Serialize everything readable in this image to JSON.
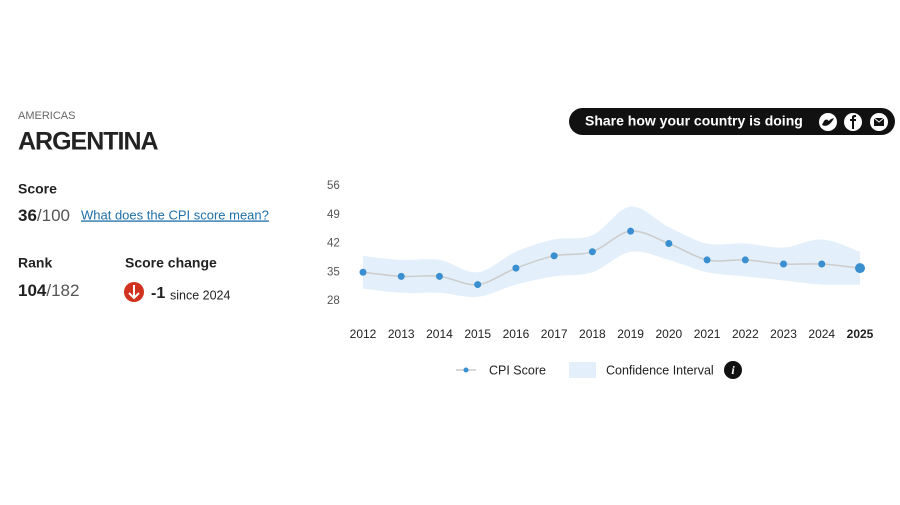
{
  "header": {
    "region": "AMERICAS",
    "country": "ARGENTINA"
  },
  "share": {
    "label": "Share how your country is doing"
  },
  "score": {
    "label": "Score",
    "value": 36,
    "max": "/100",
    "link": "What does the CPI score mean?"
  },
  "rank": {
    "label": "Rank",
    "value": 104,
    "total": "/182"
  },
  "score_change": {
    "label": "Score change",
    "value": -1,
    "since": "since 2024"
  },
  "chart_data": {
    "type": "line",
    "x": [
      2012,
      2013,
      2014,
      2015,
      2016,
      2017,
      2018,
      2019,
      2020,
      2021,
      2022,
      2023,
      2024,
      2025
    ],
    "xlim": [
      2012,
      2025
    ],
    "xticks": [
      2012,
      2013,
      2014,
      2015,
      2016,
      2017,
      2018,
      2019,
      2020,
      2021,
      2022,
      2023,
      2024,
      2025
    ],
    "ylim": [
      28,
      56
    ],
    "yticks": [
      56,
      49,
      42,
      35,
      28
    ],
    "grid": false,
    "series": [
      {
        "name": "CPI Score",
        "color": "#3a8fd0",
        "line_color": "#cccccc",
        "values": [
          35,
          34,
          34,
          32,
          36,
          39,
          40,
          45,
          42,
          38,
          38,
          37,
          37,
          36
        ]
      }
    ],
    "confidence_interval": {
      "name": "Confidence Interval",
      "color": "#e3effa",
      "lower": [
        31,
        30,
        30,
        29,
        32,
        34,
        35,
        40,
        38,
        35,
        34,
        33,
        32,
        32
      ],
      "upper": [
        39,
        38,
        38,
        35,
        40,
        43,
        44,
        51,
        46,
        42,
        42,
        41,
        43,
        40
      ]
    },
    "info_icon": "i"
  }
}
